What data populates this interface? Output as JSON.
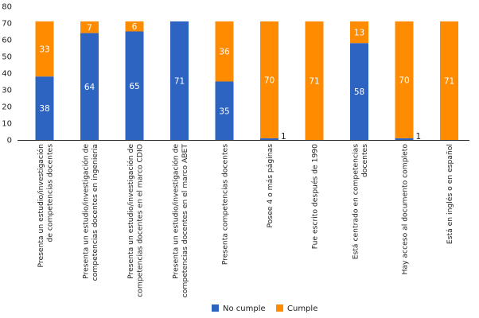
{
  "chart_data": {
    "type": "bar",
    "stacked": true,
    "categories": [
      [
        "Presenta un estudio/investigación",
        "de competencias docentes"
      ],
      [
        "Presenta un estudio/investigación de",
        "competencias docentes en ingeniería"
      ],
      [
        "Presenta un estudio/investigación de",
        "competencias docentes en el marco CDIO"
      ],
      [
        "Presenta un estudio/investigación de",
        "competencias docentes en el marco ABET"
      ],
      [
        "Presenta competencias docentes"
      ],
      [
        "Posee 4 o más páginas"
      ],
      [
        "Fue escrito después de 1990"
      ],
      [
        "Está centrado en competencias",
        "docentes"
      ],
      [
        "Hay acceso al documento completo"
      ],
      [
        "Está en inglés o en español"
      ]
    ],
    "series": [
      {
        "name": "No cumple",
        "color": "#2e64c1",
        "values": [
          38,
          64,
          65,
          71,
          35,
          1,
          0,
          58,
          1,
          0
        ]
      },
      {
        "name": "Cumple",
        "color": "#ff8c00",
        "values": [
          33,
          7,
          6,
          0,
          36,
          70,
          71,
          13,
          70,
          71
        ]
      }
    ],
    "data_labels": [
      [
        "38",
        "64",
        "65",
        "71",
        "35",
        "1",
        "",
        "58",
        "1",
        ""
      ],
      [
        "33",
        "7",
        "6",
        "",
        "36",
        "70",
        "71",
        "13",
        "70",
        "71"
      ]
    ],
    "yticks": [
      "0",
      "10",
      "20",
      "30",
      "40",
      "50",
      "60",
      "70",
      "80"
    ],
    "ylim": [
      0,
      80
    ],
    "title": "",
    "xlabel": "",
    "ylabel": "",
    "legend_position": "bottom"
  }
}
